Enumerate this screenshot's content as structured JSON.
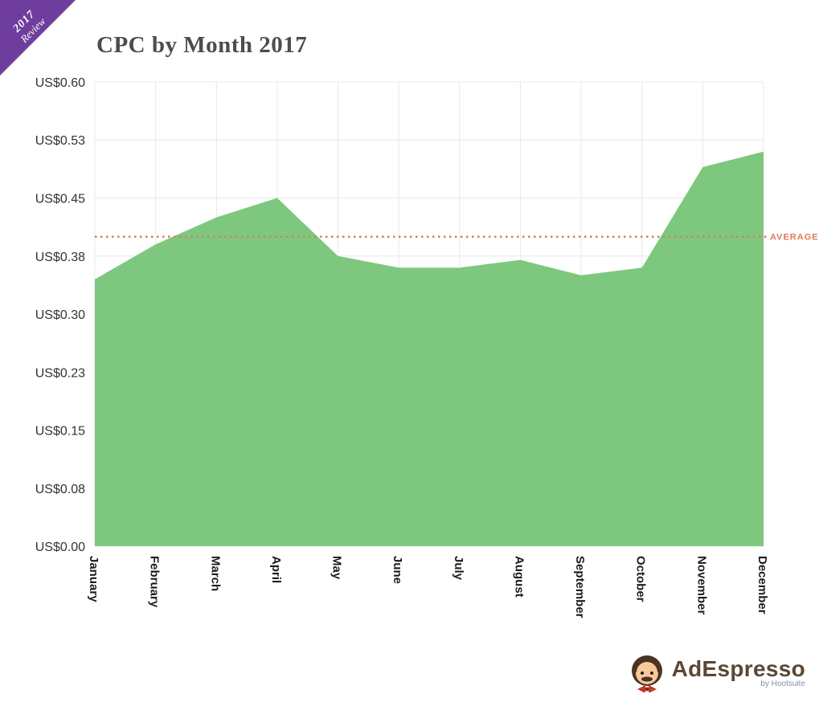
{
  "ribbon": {
    "line1": "2017",
    "line2": "Review"
  },
  "logo": {
    "brand": "AdEspresso",
    "byline": "by Hootsuite"
  },
  "chart_data": {
    "type": "area",
    "title": "CPC by Month 2017",
    "categories": [
      "January",
      "February",
      "March",
      "April",
      "May",
      "June",
      "July",
      "August",
      "September",
      "October",
      "November",
      "December"
    ],
    "values": [
      0.345,
      0.39,
      0.425,
      0.45,
      0.375,
      0.36,
      0.36,
      0.37,
      0.35,
      0.36,
      0.49,
      0.51
    ],
    "average": 0.4,
    "average_label": "AVERAGE",
    "ylim": [
      0,
      0.6
    ],
    "y_ticks": [
      {
        "value": 0.6,
        "label": "US$0.60"
      },
      {
        "value": 0.525,
        "label": "US$0.53"
      },
      {
        "value": 0.45,
        "label": "US$0.45"
      },
      {
        "value": 0.375,
        "label": "US$0.38"
      },
      {
        "value": 0.3,
        "label": "US$0.30"
      },
      {
        "value": 0.225,
        "label": "US$0.23"
      },
      {
        "value": 0.15,
        "label": "US$0.15"
      },
      {
        "value": 0.075,
        "label": "US$0.08"
      },
      {
        "value": 0.0,
        "label": "US$0.00"
      }
    ],
    "grid": true,
    "legend_position": "none",
    "area_color": "#7dc87e",
    "average_color": "#e0795c",
    "grid_color": "#e8e8e8"
  }
}
